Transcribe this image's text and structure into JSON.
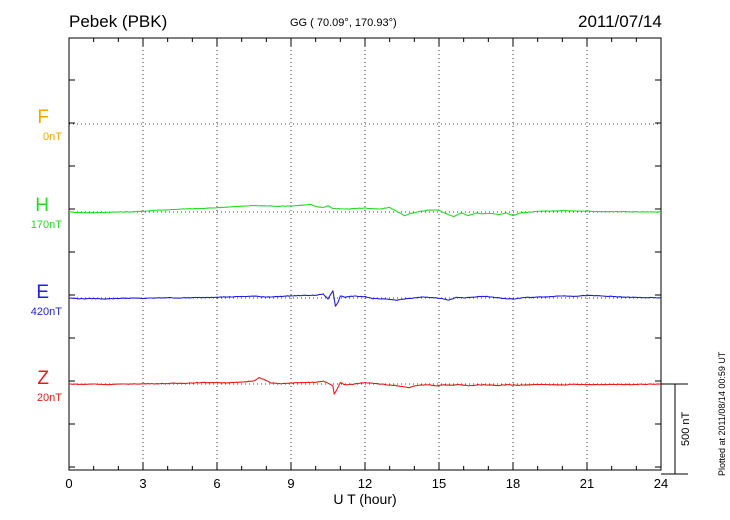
{
  "header": {
    "station": "Pebek (PBK)",
    "coords": "GG ( 70.09°, 170.93°)",
    "date": "2011/07/14"
  },
  "side_note": "Plotted at 2011/08/14 00:59 UT",
  "scale_label": "500 nT",
  "chart_data": {
    "type": "line",
    "xlabel": "U T (hour)",
    "xlim": [
      0,
      24
    ],
    "xticks": [
      "0",
      "3",
      "6",
      "9",
      "12",
      "15",
      "18",
      "21",
      "24"
    ],
    "scale_nT": 500,
    "grid": true,
    "series": [
      {
        "name": "F",
        "baseline_label": "0nT",
        "color": "#f5a300",
        "x": [],
        "y": []
      },
      {
        "name": "H",
        "baseline_label": "170nT",
        "color": "#22dd22",
        "x": [
          0,
          0.5,
          1,
          1.5,
          2,
          2.5,
          3,
          3.5,
          4,
          4.5,
          5,
          5.5,
          6,
          6.5,
          7,
          7.5,
          8,
          8.5,
          9,
          9.5,
          9.8,
          10,
          10.3,
          10.5,
          10.7,
          11,
          11.3,
          11.6,
          12,
          12.3,
          12.6,
          13,
          13.2,
          13.4,
          13.6,
          13.8,
          14,
          14.3,
          14.6,
          15,
          15.3,
          15.6,
          15.9,
          16.2,
          16.5,
          16.8,
          17.1,
          17.4,
          17.7,
          18,
          18.3,
          18.7,
          19,
          19.5,
          20,
          20.5,
          21,
          21.5,
          22,
          22.5,
          23,
          23.5,
          24
        ],
        "y": [
          0,
          -3,
          -4,
          -2,
          0,
          1,
          4,
          10,
          12,
          16,
          18,
          20,
          24,
          28,
          32,
          36,
          34,
          32,
          34,
          38,
          42,
          30,
          25,
          35,
          20,
          18,
          16,
          20,
          22,
          18,
          16,
          25,
          10,
          -5,
          -20,
          -10,
          -5,
          5,
          10,
          10,
          -10,
          -25,
          -5,
          -20,
          -5,
          -10,
          -8,
          -15,
          -5,
          -20,
          -5,
          0,
          5,
          5,
          8,
          6,
          4,
          3,
          2,
          2,
          1,
          0,
          0
        ]
      },
      {
        "name": "E",
        "baseline_label": "420nT",
        "color": "#1f1fdd",
        "x": [
          0,
          0.5,
          1,
          1.5,
          2,
          2.5,
          3,
          3.5,
          4,
          4.5,
          5,
          5.5,
          6,
          6.5,
          7,
          7.5,
          8,
          8.5,
          9,
          9.5,
          10,
          10.3,
          10.5,
          10.7,
          10.8,
          10.9,
          11,
          11.2,
          11.5,
          12,
          12.3,
          12.6,
          13,
          13.3,
          13.6,
          14,
          14.3,
          14.6,
          15,
          15.4,
          15.7,
          16,
          16.4,
          16.8,
          17.2,
          17.6,
          18,
          18.5,
          19,
          19.5,
          20,
          20.5,
          21,
          21.5,
          22,
          22.5,
          23,
          23.5,
          24
        ],
        "y": [
          0,
          -4,
          -3,
          -5,
          -2,
          -1,
          -2,
          0,
          2,
          0,
          2,
          3,
          5,
          6,
          8,
          10,
          6,
          8,
          12,
          14,
          15,
          22,
          -5,
          40,
          -45,
          -25,
          12,
          5,
          10,
          8,
          -3,
          -5,
          -8,
          -12,
          -5,
          0,
          5,
          3,
          0,
          -12,
          5,
          0,
          5,
          10,
          5,
          -3,
          -6,
          3,
          5,
          8,
          12,
          10,
          14,
          12,
          8,
          5,
          3,
          2,
          0
        ]
      },
      {
        "name": "Z",
        "baseline_label": "20nT",
        "color": "#e81a1a",
        "x": [
          0,
          0.5,
          1,
          1.5,
          2,
          2.5,
          3,
          3.5,
          4,
          4.5,
          5,
          5.5,
          6,
          6.5,
          7,
          7.5,
          7.7,
          7.9,
          8.2,
          8.6,
          9,
          9.5,
          10,
          10.3,
          10.5,
          10.7,
          10.75,
          10.85,
          11,
          11.2,
          11.5,
          11.8,
          12,
          12.3,
          12.6,
          12.9,
          13.2,
          13.5,
          13.8,
          14,
          14.3,
          14.6,
          14.9,
          15.2,
          15.5,
          15.8,
          16.2,
          16.6,
          17,
          17.4,
          17.8,
          18.2,
          18.6,
          19,
          19.5,
          20,
          20.5,
          21,
          21.5,
          22,
          22.5,
          23,
          23.5,
          24
        ],
        "y": [
          0,
          -2,
          0,
          -3,
          -1,
          0,
          1,
          2,
          3,
          4,
          6,
          8,
          8,
          7,
          10,
          18,
          35,
          25,
          5,
          2,
          5,
          8,
          10,
          15,
          5,
          -10,
          -55,
          -35,
          8,
          -5,
          -2,
          5,
          8,
          5,
          0,
          -5,
          -8,
          -15,
          -20,
          -12,
          -6,
          -4,
          -10,
          -4,
          -8,
          -3,
          -10,
          -5,
          -5,
          -8,
          -4,
          -7,
          -5,
          -3,
          -4,
          -5,
          -2,
          -4,
          -3,
          -2,
          -3,
          -2,
          -1,
          0
        ]
      }
    ]
  }
}
